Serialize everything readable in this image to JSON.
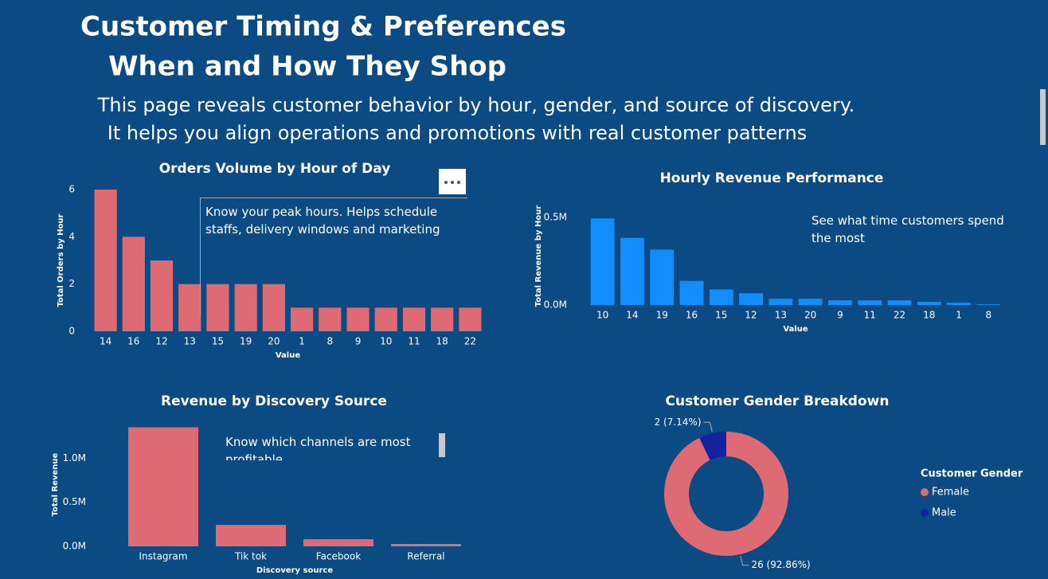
{
  "header": {
    "title_line1": "Customer Timing & Preferences",
    "title_line2": "When and How They Shop",
    "description_line1": "This page reveals customer behavior by hour, gender, and source of discovery.",
    "description_line2": "It helps you align operations and promotions with real customer patterns"
  },
  "chart_data": [
    {
      "type": "bar",
      "title": "Orders Volume by Hour of Day",
      "x_label": "Value",
      "y_label": "Total Orders by Hour",
      "categories": [
        "14",
        "16",
        "12",
        "13",
        "15",
        "19",
        "20",
        "1",
        "8",
        "9",
        "10",
        "11",
        "18",
        "22"
      ],
      "values": [
        6,
        4,
        3,
        2,
        2,
        2,
        2,
        1,
        1,
        1,
        1,
        1,
        1,
        1
      ],
      "ylim": [
        0,
        6
      ],
      "yticks": [
        0,
        2,
        4,
        6
      ],
      "color": "#de6b74",
      "annotation": "Know your peak hours. Helps schedule staffs, delivery windows and marketing"
    },
    {
      "type": "bar",
      "title": "Hourly Revenue Performance",
      "x_label": "Value",
      "y_label": "Total Revenue by Hour",
      "categories": [
        "10",
        "14",
        "19",
        "16",
        "15",
        "12",
        "13",
        "20",
        "9",
        "11",
        "22",
        "18",
        "1",
        "8"
      ],
      "values": [
        495000,
        384000,
        317000,
        138000,
        89000,
        67000,
        36000,
        36000,
        27000,
        27000,
        27000,
        18000,
        13000,
        4000
      ],
      "ylim": [
        0,
        560000
      ],
      "yticks": [
        {
          "value": 0,
          "label": "0.0M"
        },
        {
          "value": 500000,
          "label": "0.5M"
        }
      ],
      "color": "#118dff",
      "annotation": "See what time customers spend the most"
    },
    {
      "type": "bar",
      "title": "Revenue by Discovery Source",
      "x_label": "Discovery source",
      "y_label": "Total Revenue",
      "categories": [
        "Instagram",
        "Tik tok",
        "Facebook",
        "Referral"
      ],
      "values": [
        1350000,
        243000,
        81000,
        27000
      ],
      "ylim": [
        0,
        1400000
      ],
      "yticks": [
        {
          "value": 0,
          "label": "0.0M"
        },
        {
          "value": 500000,
          "label": "0.5M"
        },
        {
          "value": 1000000,
          "label": "1.0M"
        }
      ],
      "color": "#de6b74",
      "annotation": "Know which channels are most profitable"
    },
    {
      "type": "pie",
      "title": "Customer Gender Breakdown",
      "legend_title": "Customer Gender",
      "categories": [
        "Female",
        "Male"
      ],
      "values": [
        26,
        2
      ],
      "value_labels": [
        "26 (92.86%)",
        "2 (7.14%)"
      ],
      "colors": [
        "#de6b74",
        "#12239e"
      ],
      "donut": true
    }
  ]
}
